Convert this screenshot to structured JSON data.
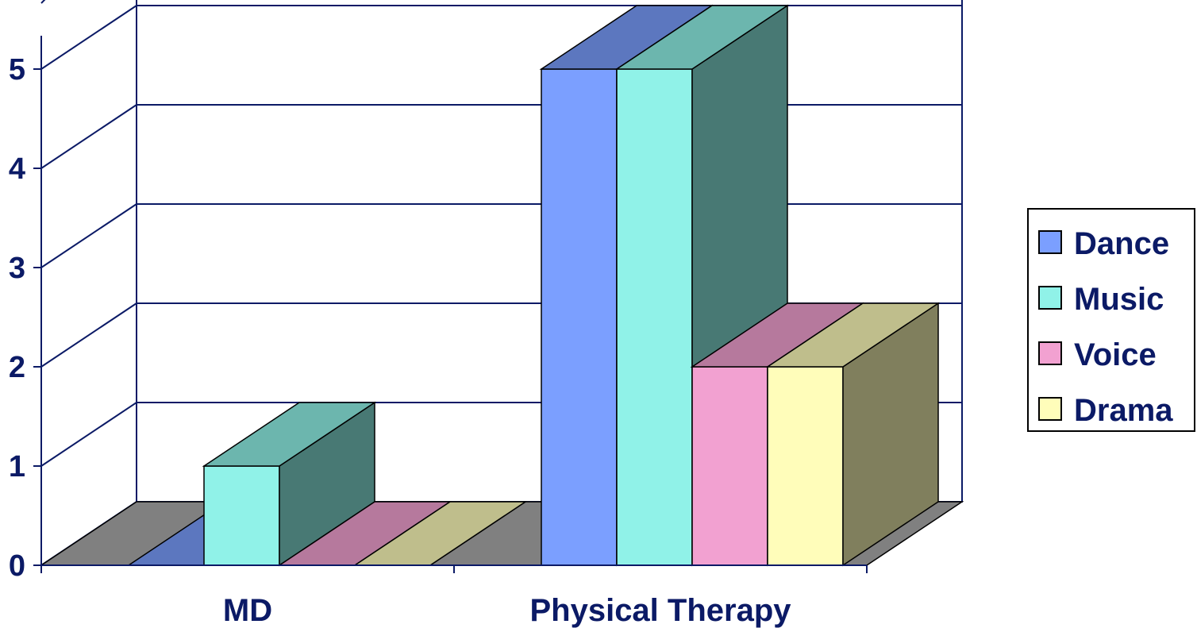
{
  "chart_data": {
    "type": "bar",
    "style": "3d-clustered-column",
    "categories": [
      "MD",
      "Physical Therapy"
    ],
    "series": [
      {
        "name": "Dance",
        "values": [
          0,
          5
        ],
        "color": "#7b9fff"
      },
      {
        "name": "Music",
        "values": [
          1,
          5
        ],
        "color": "#90f2e8"
      },
      {
        "name": "Voice",
        "values": [
          0,
          2
        ],
        "color": "#f2a1d1"
      },
      {
        "name": "Drama",
        "values": [
          0,
          2
        ],
        "color": "#fffdba"
      }
    ],
    "y_ticks": [
      "0",
      "1",
      "2",
      "3",
      "4",
      "5"
    ],
    "ylim": [
      0,
      5
    ],
    "grid": true,
    "legend": "right",
    "colors": {
      "text": "#0b1a66",
      "floor": "#808080",
      "axis": "#0b1a66"
    }
  }
}
